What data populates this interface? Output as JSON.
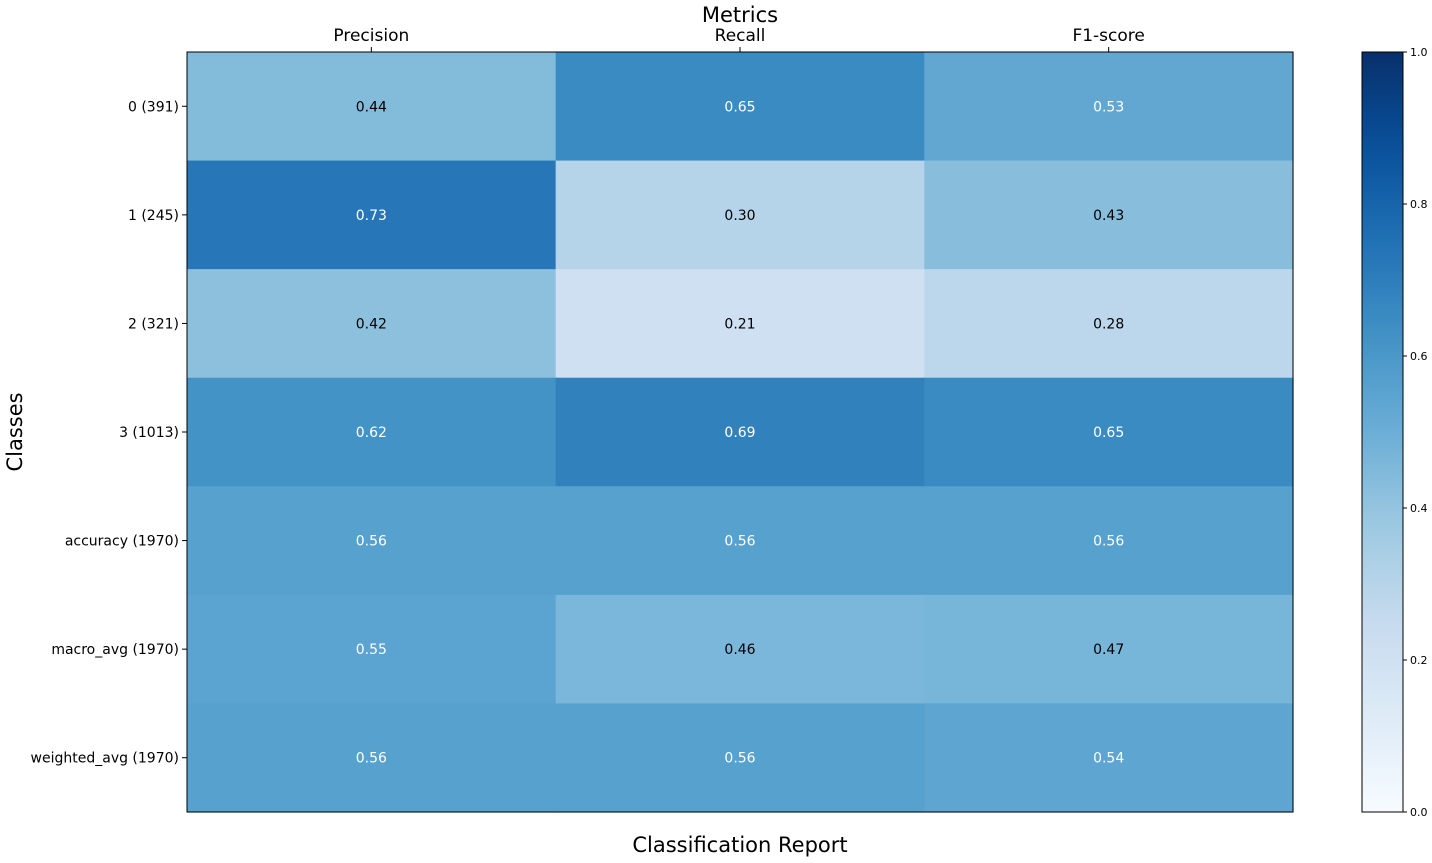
{
  "chart_data": {
    "type": "heatmap",
    "title": "Metrics",
    "xlabel": "Classification Report",
    "ylabel": "Classes",
    "columns": [
      "Precision",
      "Recall",
      "F1-score"
    ],
    "rows": [
      "0 (391)",
      "1 (245)",
      "2 (321)",
      "3 (1013)",
      "accuracy (1970)",
      "macro_avg (1970)",
      "weighted_avg (1970)"
    ],
    "values": [
      [
        0.44,
        0.65,
        0.53
      ],
      [
        0.73,
        0.3,
        0.43
      ],
      [
        0.42,
        0.21,
        0.28
      ],
      [
        0.62,
        0.69,
        0.65
      ],
      [
        0.56,
        0.56,
        0.56
      ],
      [
        0.55,
        0.46,
        0.47
      ],
      [
        0.56,
        0.56,
        0.54
      ]
    ],
    "colormap": "Blues",
    "vmin": 0.0,
    "vmax": 1.0,
    "colorbar_ticks": [
      "0.0",
      "0.2",
      "0.4",
      "0.6",
      "0.8",
      "1.0"
    ],
    "grid": false
  }
}
